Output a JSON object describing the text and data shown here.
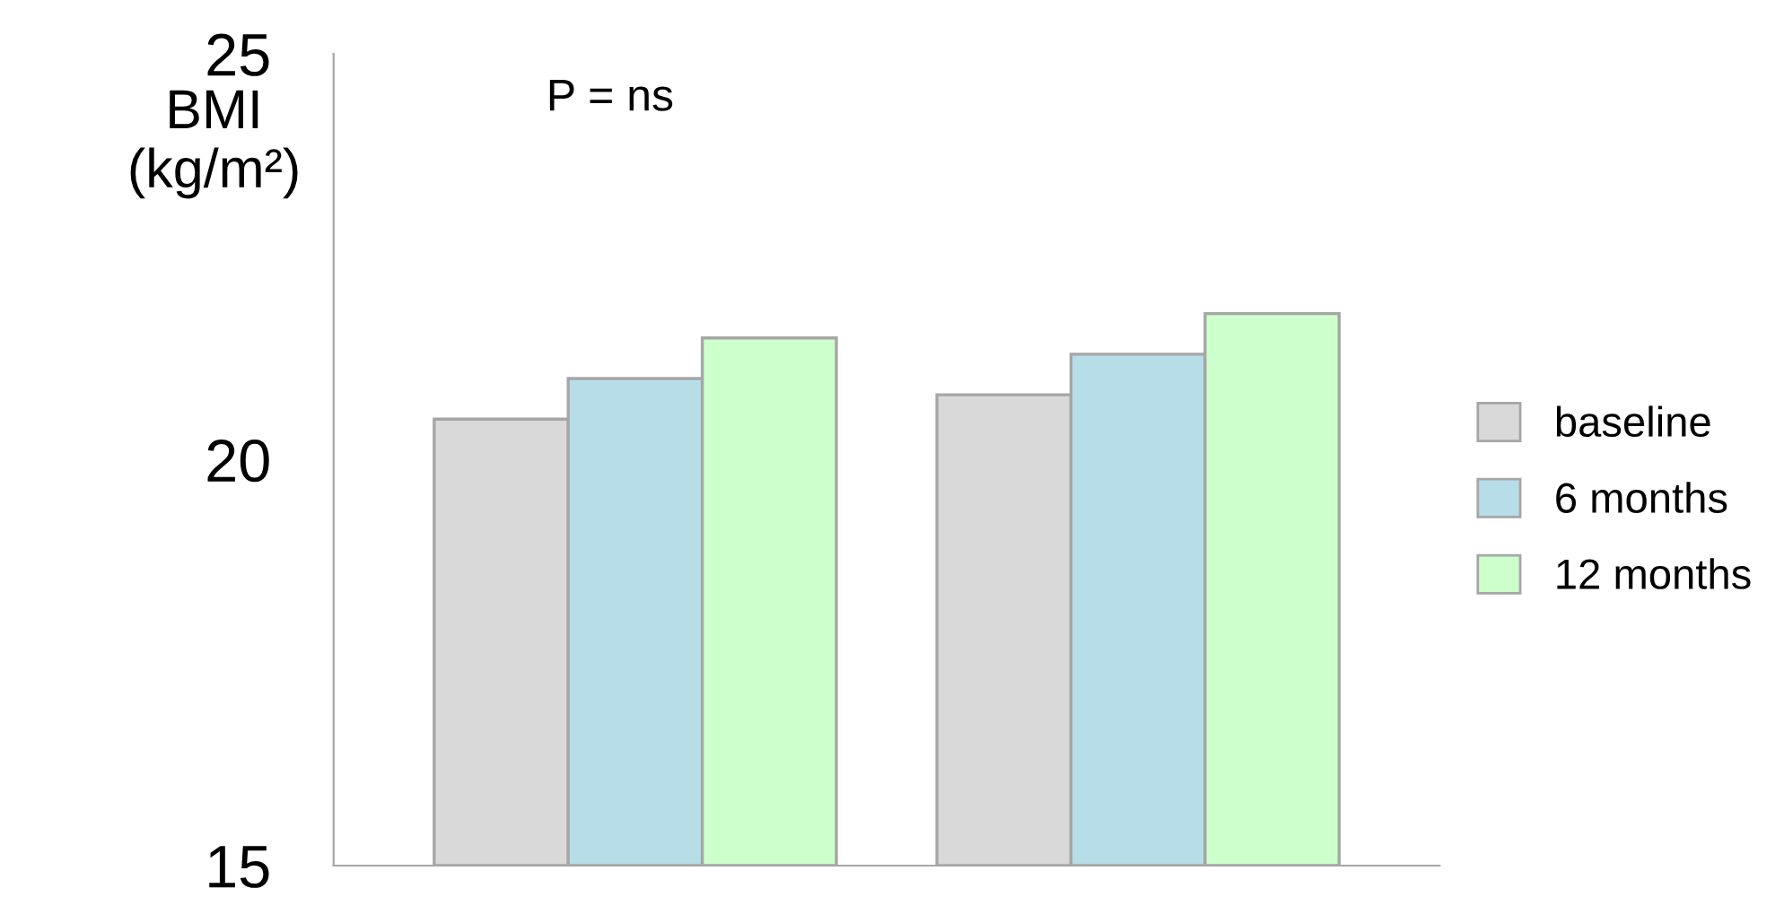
{
  "chart_data": {
    "type": "bar",
    "ylabel": "BMI\n(kg/m²)",
    "categories": [
      null,
      null
    ],
    "series": [
      {
        "name": "baseline",
        "color": "#d9d9d9",
        "values": [
          20.5,
          20.8
        ]
      },
      {
        "name": "6 months",
        "color": "#b7dde8",
        "values": [
          21.0,
          21.3
        ]
      },
      {
        "name": "12 months",
        "color": "#ccffcc",
        "values": [
          21.5,
          21.8
        ]
      }
    ],
    "ylim": [
      15,
      25
    ],
    "yticks": [
      15,
      20,
      25
    ],
    "grid": false,
    "legend": "right",
    "annotations": [
      "P = ns"
    ]
  }
}
